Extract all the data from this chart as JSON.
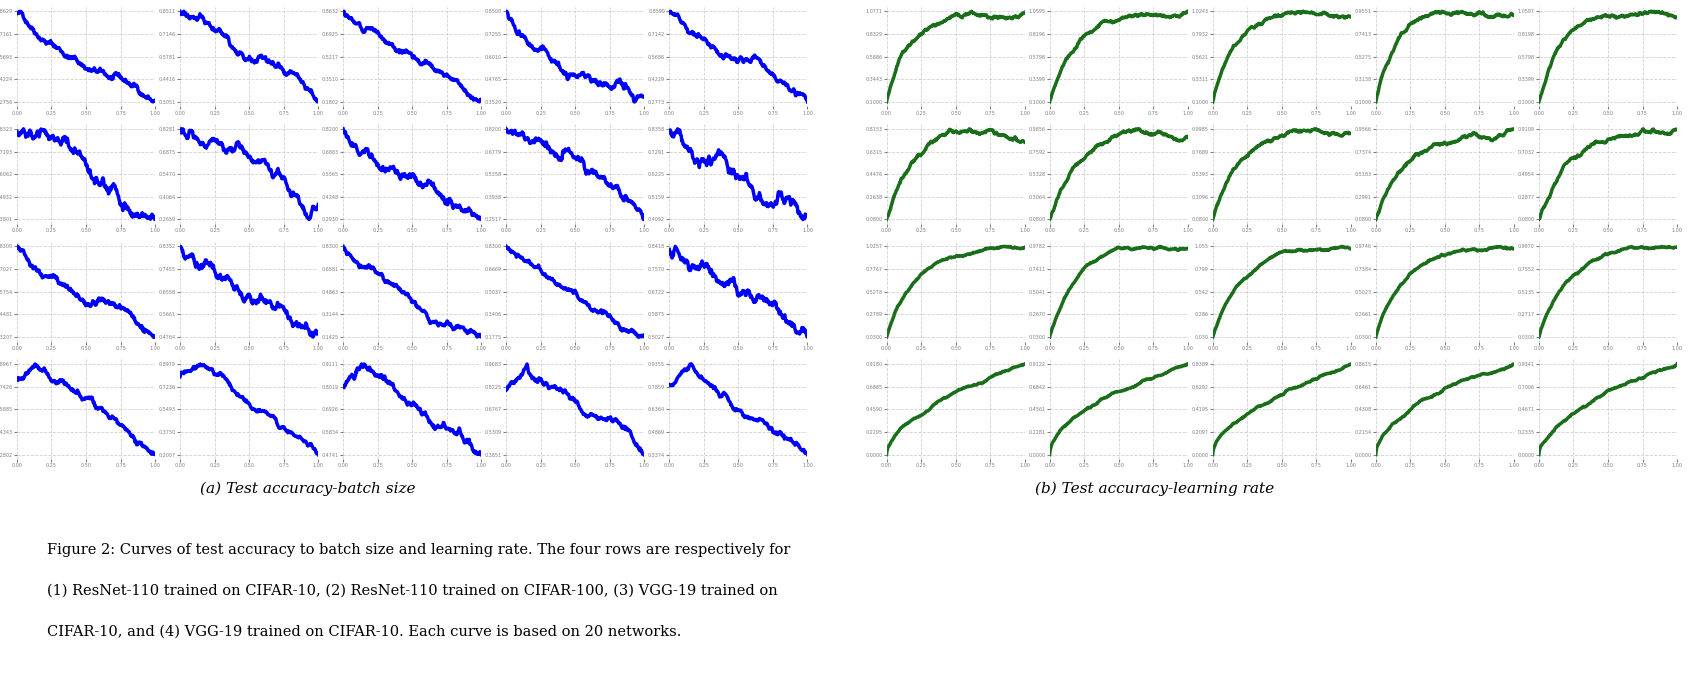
{
  "blue_color": "#0000FF",
  "green_color": "#1a6e1a",
  "caption_a": "(a) Test accuracy-batch size",
  "caption_b": "(b) Test accuracy-learning rate",
  "figure_caption_line1": "Figure 2: Curves of test accuracy to batch size and learning rate. The four rows are respectively for",
  "figure_caption_line2": "(1) ResNet-110 trained on CIFAR-10, (2) ResNet-110 trained on CIFAR-100, (3) VGG-19 trained on",
  "figure_caption_line3": "CIFAR-10, and (4) VGG-19 trained on CIFAR-10. Each curve is based on 20 networks.",
  "rows": 4,
  "cols": 5,
  "linewidth": 2.5,
  "seed": 42
}
